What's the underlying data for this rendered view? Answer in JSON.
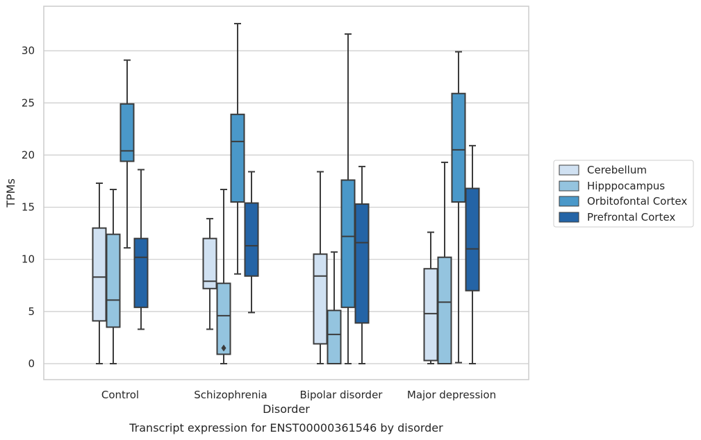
{
  "chart_data": {
    "type": "boxplot",
    "title": "",
    "caption": "Transcript expression for ENST00000361546 by disorder",
    "xlabel": "Disorder",
    "ylabel": "TPMs",
    "ylim": [
      -1.5,
      34.3
    ],
    "yticks": [
      0,
      5,
      10,
      15,
      20,
      25,
      30
    ],
    "grid": "horizontal",
    "legend_position": "right",
    "categories": [
      "Control",
      "Schizophrenia",
      "Bipolar disorder",
      "Major depression"
    ],
    "series": [
      {
        "name": "Cerebellum",
        "color": "#d0e1f2",
        "boxes": [
          {
            "whislo": 0,
            "q1": 4.1,
            "med": 8.3,
            "q3": 13.0,
            "whishi": 17.3,
            "fliers": []
          },
          {
            "whislo": 3.3,
            "q1": 7.2,
            "med": 7.9,
            "q3": 12.0,
            "whishi": 13.9,
            "fliers": []
          },
          {
            "whislo": 0,
            "q1": 1.9,
            "med": 8.4,
            "q3": 10.5,
            "whishi": 18.4,
            "fliers": []
          },
          {
            "whislo": 0,
            "q1": 0.3,
            "med": 4.8,
            "q3": 9.1,
            "whishi": 12.6,
            "fliers": []
          }
        ]
      },
      {
        "name": "Hipppocampus",
        "color": "#94c4df",
        "boxes": [
          {
            "whislo": 0,
            "q1": 3.5,
            "med": 6.1,
            "q3": 12.4,
            "whishi": 16.7,
            "fliers": []
          },
          {
            "whislo": 0,
            "q1": 0.9,
            "med": 4.6,
            "q3": 7.7,
            "whishi": 16.7,
            "fliers": [
              1.5
            ]
          },
          {
            "whislo": 0,
            "q1": 0,
            "med": 2.8,
            "q3": 5.1,
            "whishi": 10.7,
            "fliers": []
          },
          {
            "whislo": 0,
            "q1": 0,
            "med": 5.9,
            "q3": 10.2,
            "whishi": 19.3,
            "fliers": []
          }
        ]
      },
      {
        "name": "Orbitofontal Cortex",
        "color": "#4a98c9",
        "boxes": [
          {
            "whislo": 11.1,
            "q1": 19.4,
            "med": 20.4,
            "q3": 24.9,
            "whishi": 29.1,
            "fliers": []
          },
          {
            "whislo": 8.6,
            "q1": 15.5,
            "med": 21.3,
            "q3": 23.9,
            "whishi": 32.6,
            "fliers": []
          },
          {
            "whislo": 0,
            "q1": 5.4,
            "med": 12.2,
            "q3": 17.6,
            "whishi": 31.6,
            "fliers": []
          },
          {
            "whislo": 0.1,
            "q1": 15.5,
            "med": 20.5,
            "q3": 25.9,
            "whishi": 29.9,
            "fliers": []
          }
        ]
      },
      {
        "name": "Prefrontal Cortex",
        "color": "#2464a6",
        "boxes": [
          {
            "whislo": 3.3,
            "q1": 5.4,
            "med": 10.2,
            "q3": 12.0,
            "whishi": 18.6,
            "fliers": []
          },
          {
            "whislo": 4.9,
            "q1": 8.4,
            "med": 11.3,
            "q3": 15.4,
            "whishi": 18.4,
            "fliers": []
          },
          {
            "whislo": 0,
            "q1": 3.9,
            "med": 11.6,
            "q3": 15.3,
            "whishi": 18.9,
            "fliers": []
          },
          {
            "whislo": 0,
            "q1": 7.0,
            "med": 11.0,
            "q3": 16.8,
            "whishi": 20.9,
            "fliers": []
          }
        ]
      }
    ]
  }
}
